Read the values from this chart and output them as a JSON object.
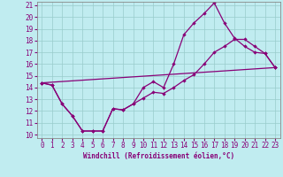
{
  "xlabel": "Windchill (Refroidissement éolien,°C)",
  "background_color": "#c0ecf0",
  "grid_color": "#99cccc",
  "line_color": "#880077",
  "xlim": [
    0,
    23
  ],
  "ylim": [
    10,
    21
  ],
  "xticks": [
    0,
    1,
    2,
    3,
    4,
    5,
    6,
    7,
    8,
    9,
    10,
    11,
    12,
    13,
    14,
    15,
    16,
    17,
    18,
    19,
    20,
    21,
    22,
    23
  ],
  "yticks": [
    10,
    11,
    12,
    13,
    14,
    15,
    16,
    17,
    18,
    19,
    20,
    21
  ],
  "line1_x": [
    0,
    1,
    2,
    3,
    4,
    5,
    6,
    7,
    8,
    9,
    10,
    11,
    12,
    13,
    14,
    15,
    16,
    17,
    18,
    19,
    20,
    21,
    22,
    23
  ],
  "line1_y": [
    14.4,
    14.2,
    12.6,
    11.6,
    10.3,
    10.3,
    10.3,
    12.2,
    12.1,
    12.6,
    14.0,
    14.5,
    14.0,
    16.0,
    18.5,
    19.5,
    20.3,
    21.2,
    19.5,
    18.2,
    17.5,
    17.0,
    16.9,
    15.7
  ],
  "line2_x": [
    0,
    1,
    2,
    3,
    4,
    5,
    6,
    7,
    8,
    9,
    10,
    11,
    12,
    13,
    14,
    15,
    16,
    17,
    18,
    19,
    20,
    21,
    22,
    23
  ],
  "line2_y": [
    14.4,
    14.2,
    12.6,
    11.6,
    10.3,
    10.3,
    10.3,
    12.2,
    12.1,
    12.6,
    13.1,
    13.6,
    13.5,
    14.0,
    14.6,
    15.1,
    16.0,
    17.0,
    17.5,
    18.1,
    18.1,
    17.5,
    16.9,
    15.7
  ],
  "line3_x": [
    0,
    23
  ],
  "line3_y": [
    14.4,
    15.7
  ],
  "tick_fontsize": 5.5,
  "xlabel_fontsize": 5.5
}
